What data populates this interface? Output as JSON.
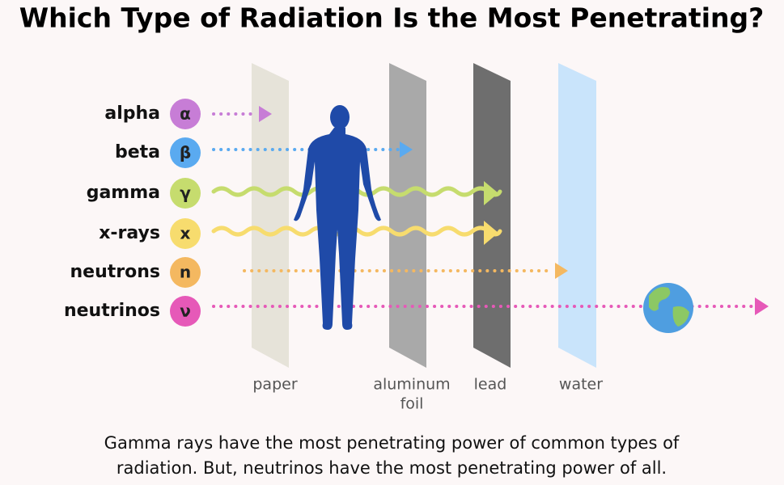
{
  "title": "Which Type of Radiation Is the Most Penetrating?",
  "radiation": [
    {
      "name": "alpha",
      "symbol": "α"
    },
    {
      "name": "beta",
      "symbol": "β"
    },
    {
      "name": "gamma",
      "symbol": "γ"
    },
    {
      "name": "x-rays",
      "symbol": "x"
    },
    {
      "name": "neutrons",
      "symbol": "n"
    },
    {
      "name": "neutrinos",
      "symbol": "ν"
    }
  ],
  "barriers": [
    {
      "lines": [
        "paper"
      ]
    },
    {
      "lines": [
        "aluminum",
        "foil"
      ]
    },
    {
      "lines": [
        "lead"
      ]
    },
    {
      "lines": [
        "water"
      ]
    }
  ],
  "caption": [
    "Gamma rays have the most penetrating power of common types of",
    "radiation. But, neutrinos have the most penetrating power of all."
  ]
}
